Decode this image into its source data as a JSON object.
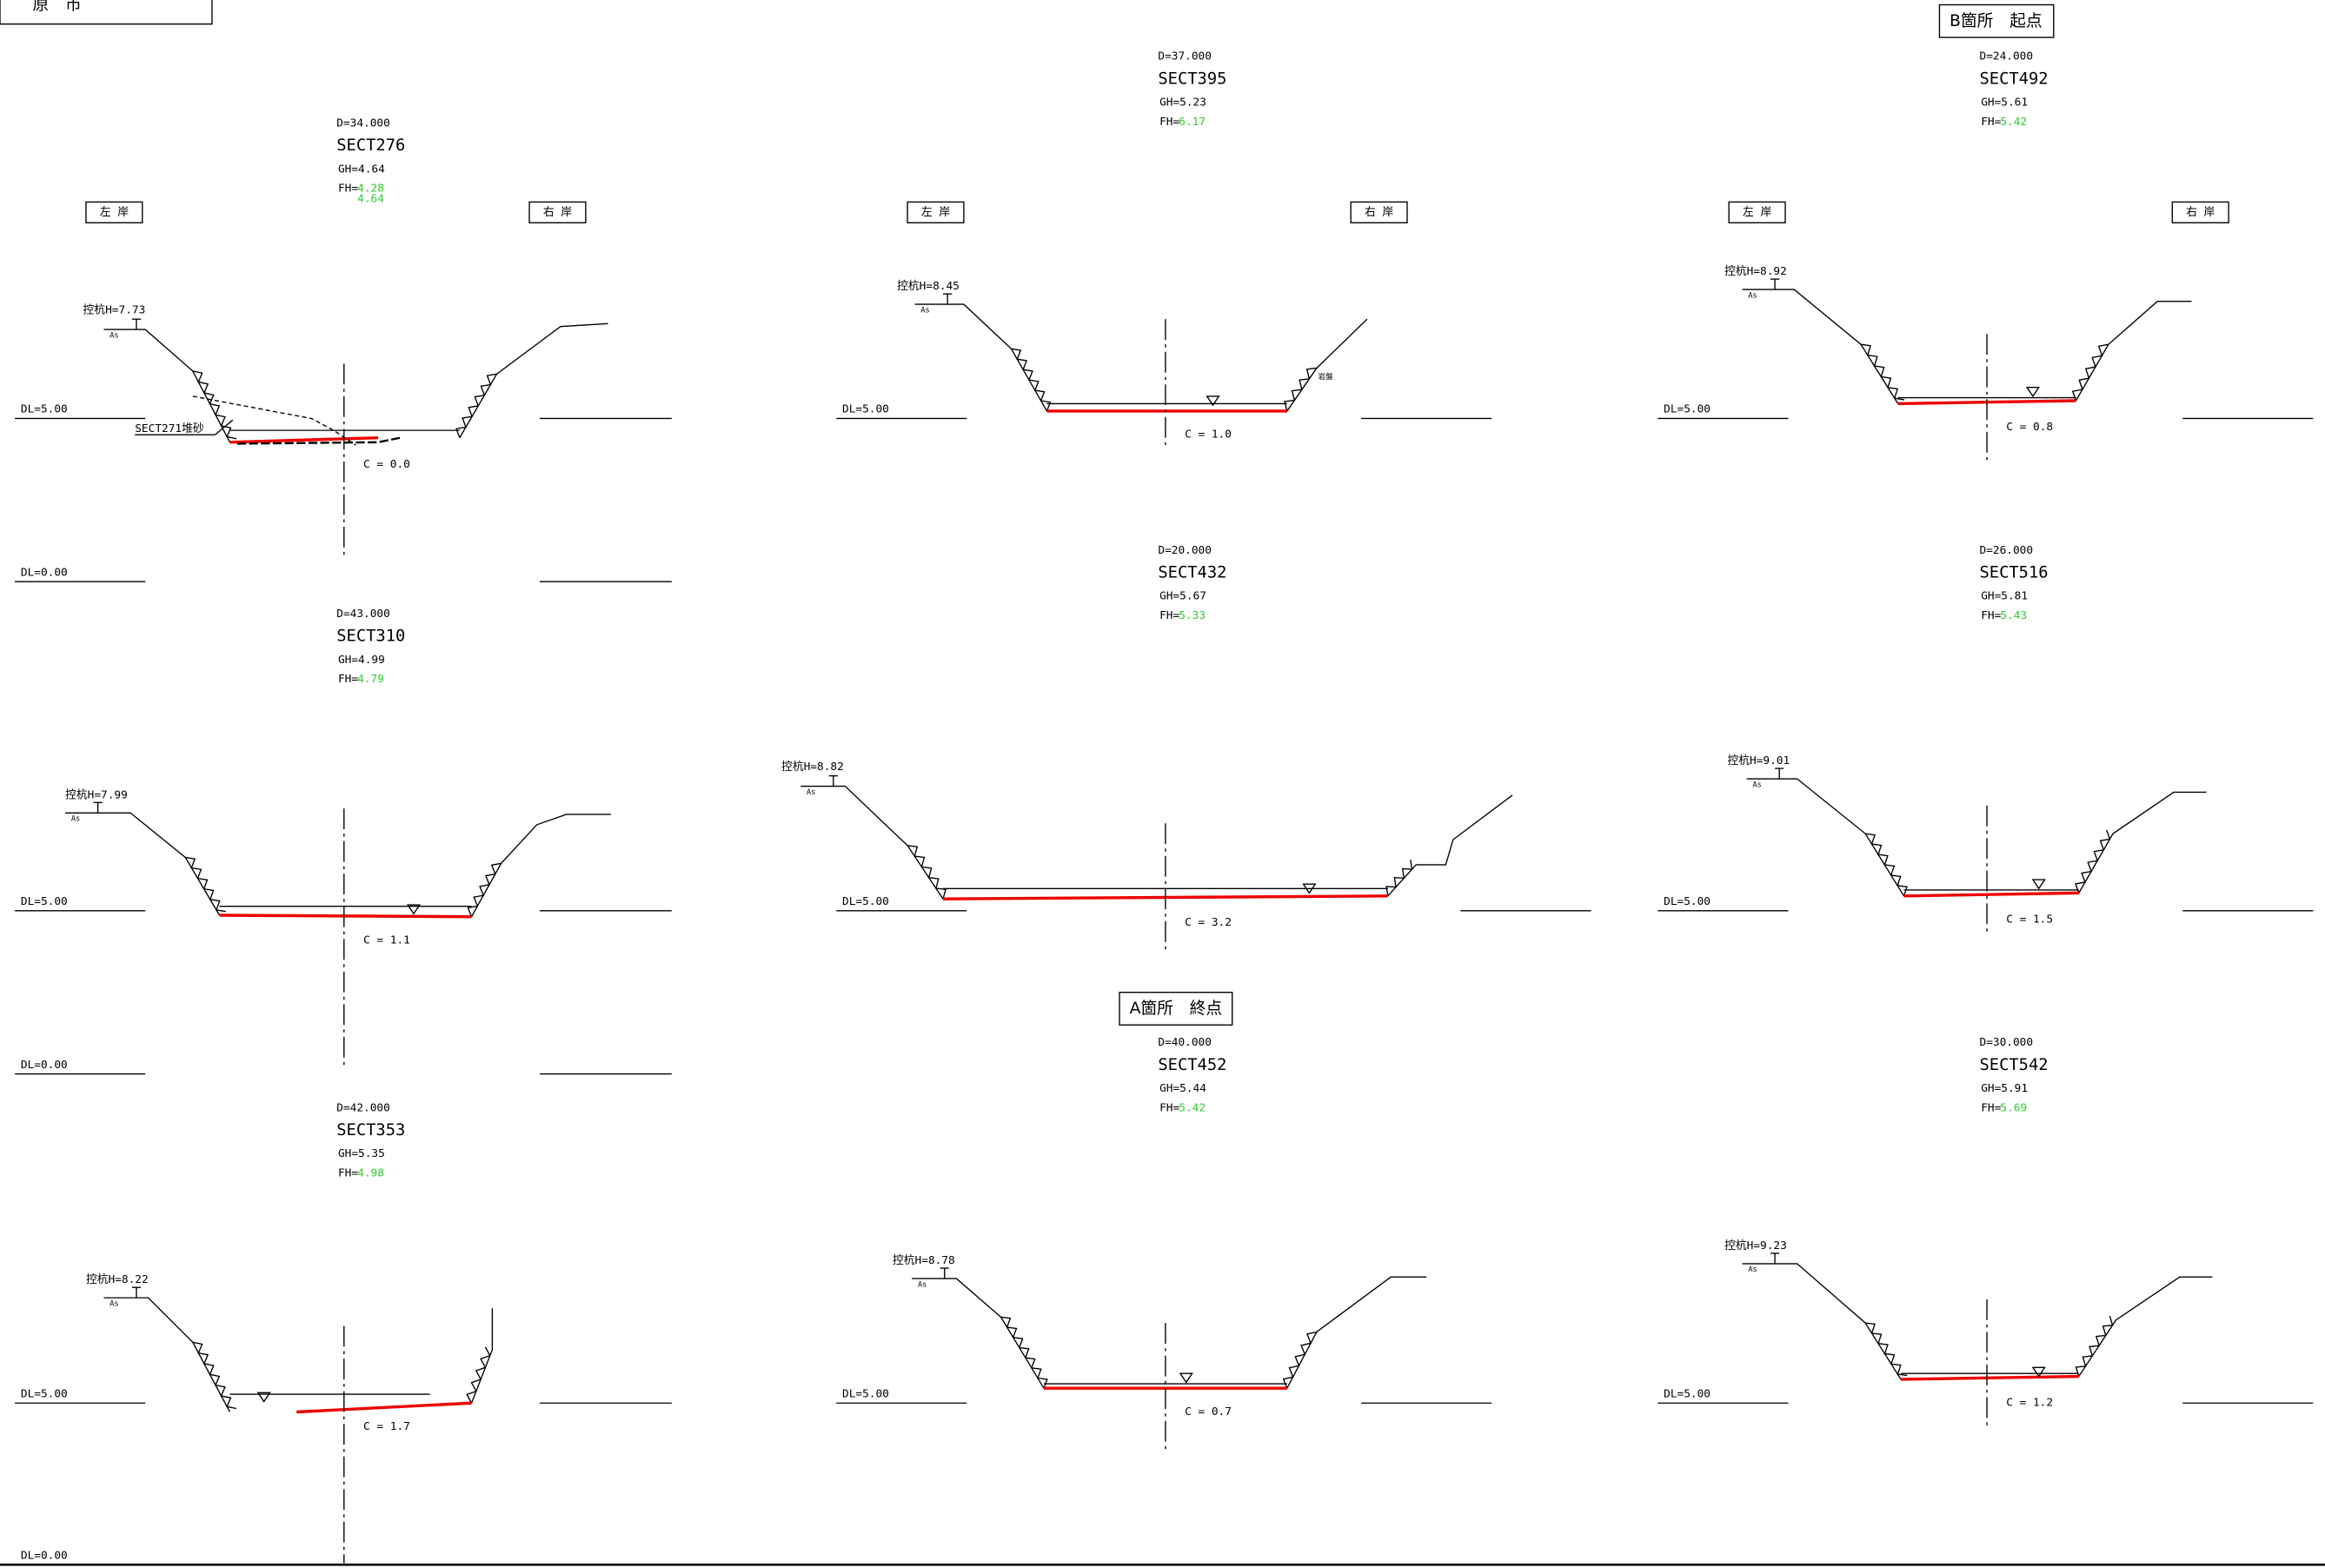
{
  "title_box": "原　市",
  "labels": {
    "left_bank": "左 岸",
    "right_bank": "右 岸",
    "b_start": "B箇所　起点",
    "a_end": "A箇所　終点",
    "deposit": "SECT271堆砂",
    "rock": "岩盤",
    "as": "As",
    "dl5": "DL=5.00",
    "dl0": "DL=0.00",
    "fh_prefix": "FH="
  },
  "sections": [
    {
      "name": "SECT276",
      "d": "D=34.000",
      "gh": "GH=4.64",
      "fh": "4.28",
      "fh2": "4.64",
      "stake": "控杭H=7.73",
      "c": "C = 0.0"
    },
    {
      "name": "SECT310",
      "d": "D=43.000",
      "gh": "GH=4.99",
      "fh": "4.79",
      "stake": "控杭H=7.99",
      "c": "C = 1.1"
    },
    {
      "name": "SECT353",
      "d": "D=42.000",
      "gh": "GH=5.35",
      "fh": "4.98",
      "stake": "控杭H=8.22",
      "c": "C = 1.7"
    },
    {
      "name": "SECT395",
      "d": "D=37.000",
      "gh": "GH=5.23",
      "fh": "6.17",
      "stake": "控杭H=8.45",
      "c": "C = 1.0"
    },
    {
      "name": "SECT432",
      "d": "D=20.000",
      "gh": "GH=5.67",
      "fh": "5.33",
      "stake": "控杭H=8.82",
      "c": "C = 3.2"
    },
    {
      "name": "SECT452",
      "d": "D=40.000",
      "gh": "GH=5.44",
      "fh": "5.42",
      "stake": "控杭H=8.78",
      "c": "C = 0.7"
    },
    {
      "name": "SECT492",
      "d": "D=24.000",
      "gh": "GH=5.61",
      "fh": "5.42",
      "stake": "控杭H=8.92",
      "c": "C = 0.8"
    },
    {
      "name": "SECT516",
      "d": "D=26.000",
      "gh": "GH=5.81",
      "fh": "5.43",
      "stake": "控杭H=9.01",
      "c": "C = 1.5"
    },
    {
      "name": "SECT542",
      "d": "D=30.000",
      "gh": "GH=5.91",
      "fh": "5.69",
      "stake": "控杭H=9.23",
      "c": "C = 1.2"
    }
  ]
}
